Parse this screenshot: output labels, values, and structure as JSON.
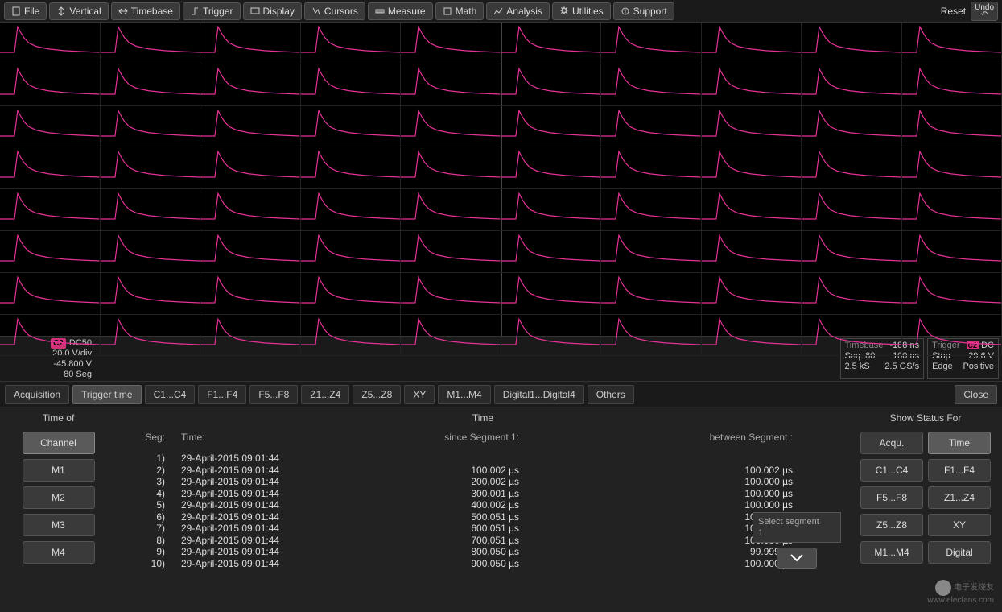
{
  "toolbar": {
    "items": [
      {
        "label": "File",
        "icon": "file"
      },
      {
        "label": "Vertical",
        "icon": "vertical"
      },
      {
        "label": "Timebase",
        "icon": "timebase"
      },
      {
        "label": "Trigger",
        "icon": "trigger"
      },
      {
        "label": "Display",
        "icon": "display"
      },
      {
        "label": "Cursors",
        "icon": "cursors"
      },
      {
        "label": "Measure",
        "icon": "measure"
      },
      {
        "label": "Math",
        "icon": "math"
      },
      {
        "label": "Analysis",
        "icon": "analysis"
      },
      {
        "label": "Utilities",
        "icon": "utilities"
      },
      {
        "label": "Support",
        "icon": "support"
      }
    ],
    "reset": "Reset",
    "undo": "Undo"
  },
  "waveform": {
    "rows": 8,
    "cols": 10,
    "trace_color": "#e63298",
    "bg_color": "#000000",
    "grid_color": "#222222"
  },
  "channel_info": {
    "badge": "C2",
    "coupling": "DC50",
    "vdiv": "20.0 V/div",
    "offset": "-45.800 V",
    "seg": "80 Seg"
  },
  "timebase_info": {
    "title": "Timebase",
    "delay": "-188 ns",
    "rows": [
      [
        "Seq: 80",
        "100 ns"
      ],
      [
        "2.5 kS",
        "2.5 GS/s"
      ]
    ]
  },
  "trigger_info": {
    "title": "Trigger",
    "badge": "C2",
    "coupling": "DC",
    "rows": [
      [
        "Stop",
        "29.6 V"
      ],
      [
        "Edge",
        "Positive"
      ]
    ]
  },
  "tabs": {
    "items": [
      "Acquisition",
      "Trigger time",
      "C1...C4",
      "F1...F4",
      "F5...F8",
      "Z1...Z4",
      "Z5...Z8",
      "XY",
      "M1...M4",
      "Digital1...Digital4",
      "Others"
    ],
    "active": 1,
    "close": "Close"
  },
  "panel": {
    "left": {
      "header": "Time of",
      "buttons": [
        "Channel",
        "M1",
        "M2",
        "M3",
        "M4"
      ],
      "active": 0
    },
    "mid": {
      "title": "Time",
      "headers": {
        "seg": "Seg:",
        "time": "Time:",
        "since": "since Segment 1:",
        "between": "between Segment :"
      },
      "rows": [
        {
          "seg": "1)",
          "time": "29-April-2015  09:01:44",
          "since": "",
          "between": ""
        },
        {
          "seg": "2)",
          "time": "29-April-2015  09:01:44",
          "since": "100.002 µs",
          "between": "100.002 µs"
        },
        {
          "seg": "3)",
          "time": "29-April-2015  09:01:44",
          "since": "200.002 µs",
          "between": "100.000 µs"
        },
        {
          "seg": "4)",
          "time": "29-April-2015  09:01:44",
          "since": "300.001 µs",
          "between": "100.000 µs"
        },
        {
          "seg": "5)",
          "time": "29-April-2015  09:01:44",
          "since": "400.002 µs",
          "between": "100.000 µs"
        },
        {
          "seg": "6)",
          "time": "29-April-2015  09:01:44",
          "since": "500.051 µs",
          "between": "100.049 µs"
        },
        {
          "seg": "7)",
          "time": "29-April-2015  09:01:44",
          "since": "600.051 µs",
          "between": "100.000 µs"
        },
        {
          "seg": "8)",
          "time": "29-April-2015  09:01:44",
          "since": "700.051 µs",
          "between": "100.000 µs"
        },
        {
          "seg": "9)",
          "time": "29-April-2015  09:01:44",
          "since": "800.050 µs",
          "between": "99.999 µs"
        },
        {
          "seg": "10)",
          "time": "29-April-2015  09:01:44",
          "since": "900.050 µs",
          "between": "100.000 µs"
        }
      ],
      "select_segment": {
        "label": "Select segment",
        "value": "1"
      }
    },
    "right": {
      "header": "Show Status For",
      "buttons": [
        "Acqu.",
        "Time",
        "C1...C4",
        "F1...F4",
        "F5...F8",
        "Z1...Z4",
        "Z5...Z8",
        "XY",
        "M1...M4",
        "Digital"
      ],
      "active": 1
    }
  },
  "watermark": {
    "line1": "电子发烧友",
    "line2": "www.elecfans.com"
  }
}
